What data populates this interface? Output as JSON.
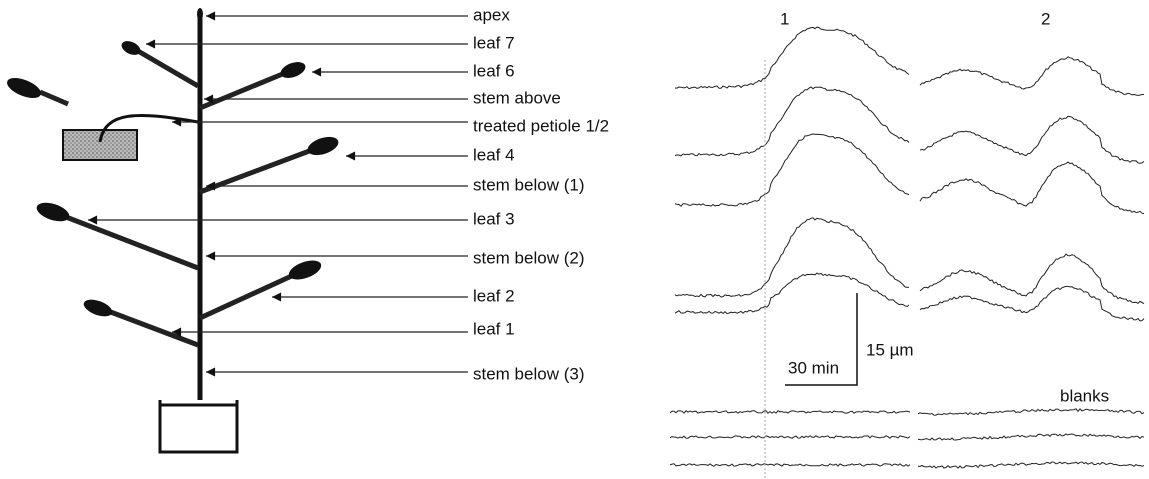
{
  "labels": [
    "apex",
    "leaf 7",
    "leaf 6",
    "stem above",
    "treated petiole 1/2",
    "leaf 4",
    "stem below (1)",
    "leaf 3",
    "stem below (2)",
    "leaf 2",
    "leaf 1",
    "stem below (3)"
  ],
  "panels": [
    "1",
    "2"
  ],
  "scale": {
    "time": "30 min",
    "length": "15 µm"
  },
  "blanks": "blanks"
}
